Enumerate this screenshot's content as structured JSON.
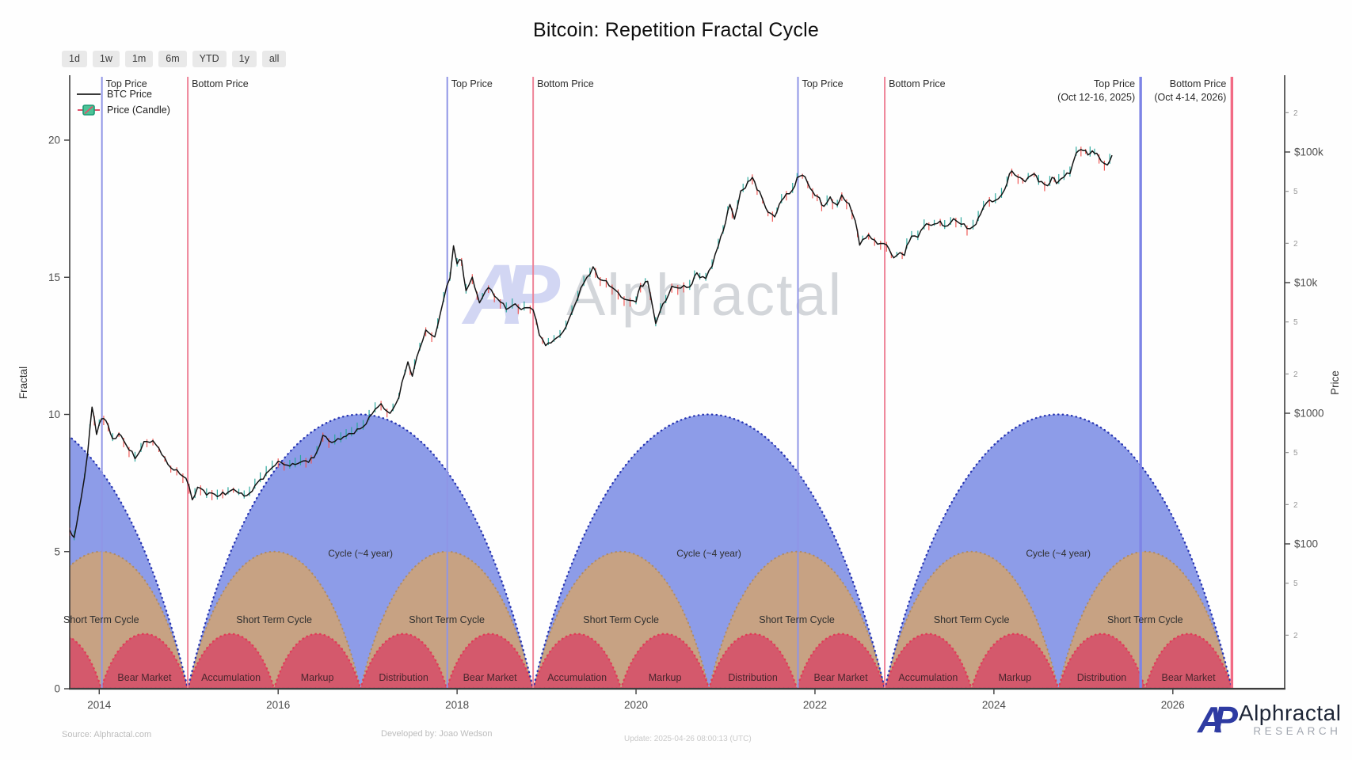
{
  "header": {
    "title": "Bitcoin: Repetition Fractal Cycle"
  },
  "toolbar": {
    "ranges": [
      "1d",
      "1w",
      "1m",
      "6m",
      "YTD",
      "1y",
      "all"
    ]
  },
  "legend": {
    "line_label": "BTC Price",
    "candle_label": "Price (Candle)"
  },
  "watermark": {
    "logo_text": "AP",
    "text": "Alphractal"
  },
  "footer": {
    "source": "Source: Alphractal.com",
    "developed_by": "Developed by: Joao Wedson",
    "update": "Update: 2025-04-26 08:00:13 (UTC)"
  },
  "brand": {
    "logo_text": "AP",
    "name": "Alphractal",
    "sub": "RESEARCH"
  },
  "chart_data": {
    "type": "line",
    "title": "Bitcoin: Repetition Fractal Cycle",
    "x_axis": {
      "range": [
        2013.67,
        2027.25
      ],
      "ticks": [
        2014,
        2016,
        2018,
        2020,
        2022,
        2024,
        2026
      ]
    },
    "y_left": {
      "label": "Fractal",
      "ticks": [
        0,
        5,
        10,
        15,
        20
      ],
      "range": [
        0,
        22.3
      ],
      "grid": false
    },
    "y_right": {
      "label": "Price",
      "scale": "log",
      "major_ticks": [
        {
          "label": "$100k",
          "value": 100000
        },
        {
          "label": "$10k",
          "value": 10000
        },
        {
          "label": "$1000",
          "value": 1000
        },
        {
          "label": "$100",
          "value": 100
        }
      ],
      "minor_ticks": [
        {
          "label": "2",
          "value": 200000
        },
        {
          "label": "5",
          "value": 50000
        },
        {
          "label": "2",
          "value": 20000
        },
        {
          "label": "5",
          "value": 5000
        },
        {
          "label": "2",
          "value": 2000
        },
        {
          "label": "5",
          "value": 500
        },
        {
          "label": "2",
          "value": 200
        },
        {
          "label": "5",
          "value": 50
        },
        {
          "label": "2",
          "value": 20
        }
      ]
    },
    "top_price_lines": {
      "label": "Top Price",
      "years": [
        2014.03,
        2017.89,
        2021.81,
        2025.64
      ],
      "last_note": "(Oct 12-16, 2025)"
    },
    "bottom_price_lines": {
      "label": "Bottom Price",
      "years": [
        2014.99,
        2018.85,
        2022.78,
        2026.66
      ],
      "last_note": "(Oct 4-14, 2026)"
    },
    "cycles": {
      "label": "Cycle (~4 year)",
      "boundaries_years": [
        2011.12,
        2014.99,
        2018.85,
        2022.78,
        2026.66
      ],
      "peak_fractal": 10,
      "short_term": {
        "label": "Short Term Cycle",
        "peak_fractal": 5
      },
      "phases": {
        "labels": [
          "Accumulation",
          "Markup",
          "Distribution",
          "Bear Market"
        ],
        "peak_fractal": 2
      }
    },
    "series": [
      {
        "name": "BTC Price",
        "x_unit": "year",
        "y_unit": "USD",
        "points": [
          [
            2013.67,
            130
          ],
          [
            2013.72,
            110
          ],
          [
            2013.8,
            230
          ],
          [
            2013.87,
            480
          ],
          [
            2013.92,
            1150
          ],
          [
            2013.97,
            700
          ],
          [
            2014.0,
            820
          ],
          [
            2014.05,
            950
          ],
          [
            2014.1,
            800
          ],
          [
            2014.15,
            620
          ],
          [
            2014.22,
            700
          ],
          [
            2014.3,
            580
          ],
          [
            2014.4,
            450
          ],
          [
            2014.5,
            590
          ],
          [
            2014.6,
            620
          ],
          [
            2014.7,
            490
          ],
          [
            2014.8,
            380
          ],
          [
            2014.9,
            350
          ],
          [
            2014.97,
            320
          ],
          [
            2015.04,
            218
          ],
          [
            2015.1,
            270
          ],
          [
            2015.2,
            245
          ],
          [
            2015.35,
            235
          ],
          [
            2015.5,
            260
          ],
          [
            2015.65,
            230
          ],
          [
            2015.8,
            310
          ],
          [
            2015.9,
            360
          ],
          [
            2016.0,
            430
          ],
          [
            2016.1,
            395
          ],
          [
            2016.25,
            420
          ],
          [
            2016.4,
            450
          ],
          [
            2016.5,
            670
          ],
          [
            2016.6,
            600
          ],
          [
            2016.7,
            640
          ],
          [
            2016.85,
            720
          ],
          [
            2016.95,
            780
          ],
          [
            2017.05,
            1000
          ],
          [
            2017.15,
            1180
          ],
          [
            2017.25,
            970
          ],
          [
            2017.35,
            1350
          ],
          [
            2017.45,
            2500
          ],
          [
            2017.5,
            1900
          ],
          [
            2017.55,
            2700
          ],
          [
            2017.65,
            4300
          ],
          [
            2017.75,
            3800
          ],
          [
            2017.85,
            7500
          ],
          [
            2017.92,
            11000
          ],
          [
            2017.96,
            19400
          ],
          [
            2018.0,
            14000
          ],
          [
            2018.05,
            15000
          ],
          [
            2018.1,
            8500
          ],
          [
            2018.17,
            11000
          ],
          [
            2018.25,
            7000
          ],
          [
            2018.35,
            9300
          ],
          [
            2018.45,
            7500
          ],
          [
            2018.55,
            6400
          ],
          [
            2018.65,
            6700
          ],
          [
            2018.75,
            6300
          ],
          [
            2018.85,
            6400
          ],
          [
            2018.92,
            4000
          ],
          [
            2018.99,
            3300
          ],
          [
            2019.05,
            3500
          ],
          [
            2019.15,
            3900
          ],
          [
            2019.25,
            5100
          ],
          [
            2019.35,
            7900
          ],
          [
            2019.45,
            11000
          ],
          [
            2019.52,
            13000
          ],
          [
            2019.6,
            10500
          ],
          [
            2019.7,
            9800
          ],
          [
            2019.8,
            8200
          ],
          [
            2019.9,
            7300
          ],
          [
            2020.0,
            7200
          ],
          [
            2020.05,
            9400
          ],
          [
            2020.13,
            10300
          ],
          [
            2020.22,
            4900
          ],
          [
            2020.3,
            6800
          ],
          [
            2020.4,
            9100
          ],
          [
            2020.5,
            9300
          ],
          [
            2020.6,
            9200
          ],
          [
            2020.68,
            11800
          ],
          [
            2020.78,
            10600
          ],
          [
            2020.85,
            13800
          ],
          [
            2020.92,
            19400
          ],
          [
            2021.0,
            29000
          ],
          [
            2021.05,
            40000
          ],
          [
            2021.1,
            31000
          ],
          [
            2021.17,
            49000
          ],
          [
            2021.25,
            58000
          ],
          [
            2021.3,
            63500
          ],
          [
            2021.38,
            49000
          ],
          [
            2021.45,
            37000
          ],
          [
            2021.5,
            34000
          ],
          [
            2021.55,
            31500
          ],
          [
            2021.6,
            40000
          ],
          [
            2021.68,
            47000
          ],
          [
            2021.75,
            50000
          ],
          [
            2021.8,
            62000
          ],
          [
            2021.86,
            69000
          ],
          [
            2021.92,
            57000
          ],
          [
            2022.0,
            47000
          ],
          [
            2022.05,
            43500
          ],
          [
            2022.1,
            38000
          ],
          [
            2022.17,
            44000
          ],
          [
            2022.25,
            39000
          ],
          [
            2022.3,
            46000
          ],
          [
            2022.38,
            40000
          ],
          [
            2022.45,
            30000
          ],
          [
            2022.5,
            20000
          ],
          [
            2022.6,
            23000
          ],
          [
            2022.7,
            20000
          ],
          [
            2022.8,
            19500
          ],
          [
            2022.88,
            15600
          ],
          [
            2022.95,
            16800
          ],
          [
            2023.0,
            16600
          ],
          [
            2023.08,
            23000
          ],
          [
            2023.15,
            22000
          ],
          [
            2023.22,
            28000
          ],
          [
            2023.3,
            27500
          ],
          [
            2023.4,
            29000
          ],
          [
            2023.45,
            26500
          ],
          [
            2023.55,
            30500
          ],
          [
            2023.6,
            29500
          ],
          [
            2023.7,
            26000
          ],
          [
            2023.8,
            27500
          ],
          [
            2023.85,
            34500
          ],
          [
            2023.95,
            43000
          ],
          [
            2024.05,
            42500
          ],
          [
            2024.12,
            52000
          ],
          [
            2024.2,
            73000
          ],
          [
            2024.27,
            64000
          ],
          [
            2024.35,
            60000
          ],
          [
            2024.45,
            69000
          ],
          [
            2024.5,
            61000
          ],
          [
            2024.6,
            54500
          ],
          [
            2024.65,
            64000
          ],
          [
            2024.7,
            58000
          ],
          [
            2024.75,
            63000
          ],
          [
            2024.85,
            69000
          ],
          [
            2024.92,
            99000
          ],
          [
            2025.0,
            106500
          ],
          [
            2025.05,
            94000
          ],
          [
            2025.1,
            102000
          ],
          [
            2025.15,
            97000
          ],
          [
            2025.2,
            84000
          ],
          [
            2025.27,
            79000
          ],
          [
            2025.32,
            94500
          ]
        ]
      }
    ],
    "colors": {
      "cycle_fill": "#8d9ce8",
      "cycle_border": "#2735b2",
      "short_fill": "#c7a283",
      "short_border": "#b08a60",
      "phase_fill": "#d4596c",
      "phase_border": "#e03b57",
      "top_line": "#8f95e6",
      "bottom_line": "#ee8398",
      "top_line_last": "#7d84e6",
      "bottom_line_last": "#f26a84",
      "price_line": "#141414",
      "candle_up": "#26a69a",
      "candle_down": "#ef5350",
      "axis": "#3d3d3d",
      "tick_text": "#4d4d4d",
      "minor_text": "#979797",
      "cycle_label_text": "#2f2f2f",
      "phase_label_text": "#4a262e",
      "vline_label_text": "#2b2b2b"
    },
    "legend_position": "top-left"
  }
}
